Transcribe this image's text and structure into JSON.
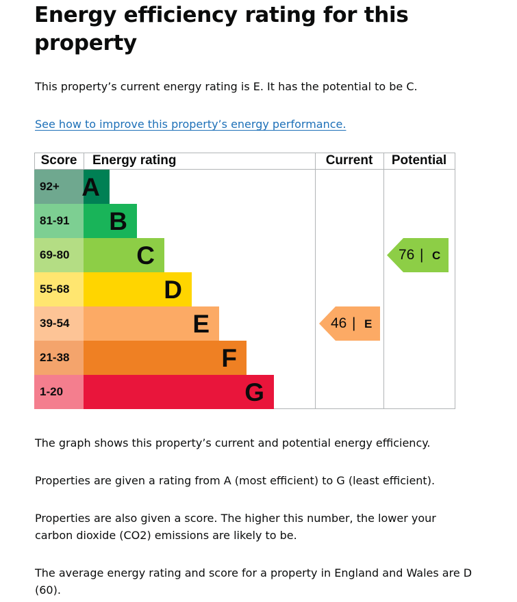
{
  "page": {
    "title": "Energy efficiency rating for this property",
    "summary": "This property’s current energy rating is E. It has the potential to be C.",
    "improve_link": "See how to improve this property’s energy performance."
  },
  "chart_data": {
    "type": "bar",
    "headers": {
      "score": "Score",
      "rating": "Energy rating",
      "current": "Current",
      "potential": "Potential"
    },
    "bands": [
      {
        "score": "92+",
        "letter": "A",
        "score_bg": "#6fa88f",
        "bar_color": "#008054",
        "width": 1
      },
      {
        "score": "81-91",
        "letter": "B",
        "score_bg": "#7dcf92",
        "bar_color": "#19b459",
        "width": 2
      },
      {
        "score": "69-80",
        "letter": "C",
        "score_bg": "#b4dd84",
        "bar_color": "#8dce46",
        "width": 3
      },
      {
        "score": "55-68",
        "letter": "D",
        "score_bg": "#ffe670",
        "bar_color": "#ffd500",
        "width": 4
      },
      {
        "score": "39-54",
        "letter": "E",
        "score_bg": "#fdc496",
        "bar_color": "#fcaa65",
        "width": 5
      },
      {
        "score": "21-38",
        "letter": "F",
        "score_bg": "#f4a46c",
        "bar_color": "#ef8023",
        "width": 6
      },
      {
        "score": "1-20",
        "letter": "G",
        "score_bg": "#f47e8e",
        "bar_color": "#e9153b",
        "width": 7
      }
    ],
    "current": {
      "score": "46",
      "sep": "|",
      "letter": "E",
      "color": "#fcaa65"
    },
    "potential": {
      "score": "76",
      "sep": "|",
      "letter": "C",
      "color": "#8dce46"
    }
  },
  "explanations": [
    "The graph shows this property’s current and potential energy efficiency.",
    "Properties are given a rating from A (most efficient) to G (least efficient).",
    "Properties are also given a score. The higher this number, the lower your carbon dioxide (CO2) emissions are likely to be.",
    "The average energy rating and score for a property in England and Wales are D (60)."
  ]
}
